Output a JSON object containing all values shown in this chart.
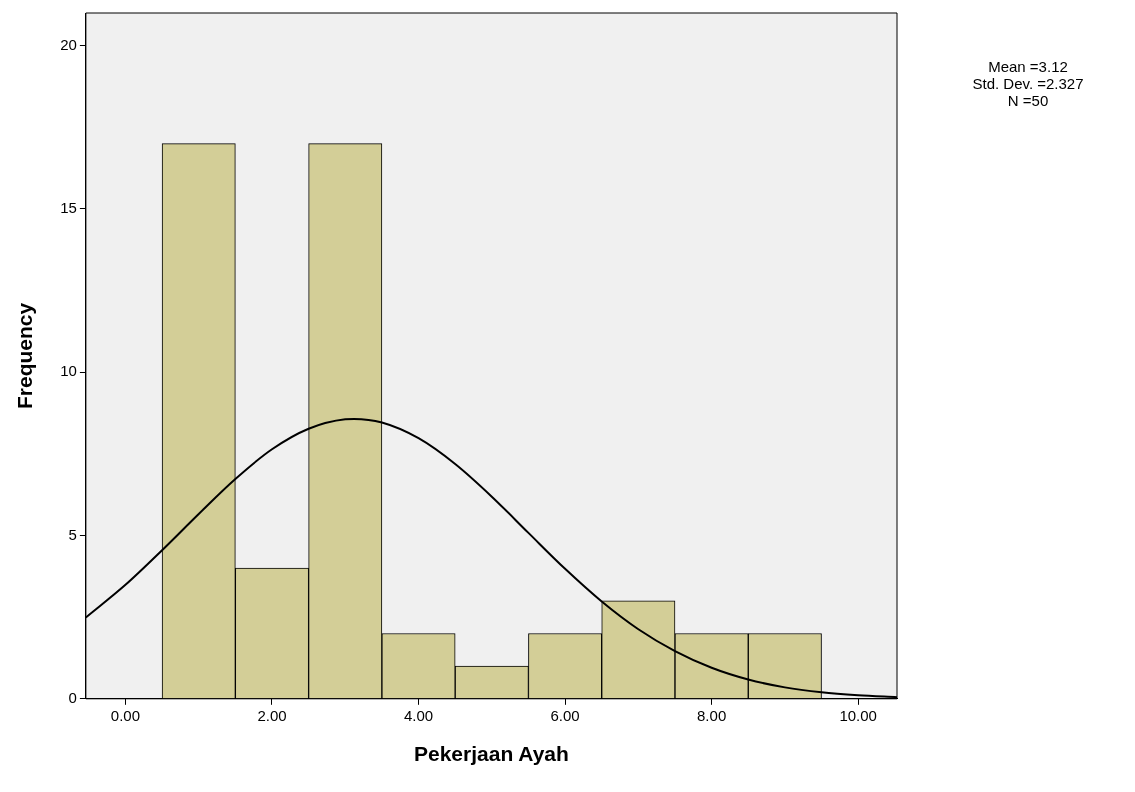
{
  "chart_data": {
    "type": "histogram",
    "xlabel": "Pekerjaan Ayah",
    "ylabel": "Frequency",
    "bins": [
      0.5,
      1.5,
      2.5,
      3.5,
      4.5,
      5.5,
      6.5,
      7.5,
      8.5,
      9.5
    ],
    "values": [
      17,
      4,
      17,
      2,
      1,
      2,
      3,
      2,
      2
    ],
    "color": "#d3ce97",
    "series": [
      {
        "type": "line",
        "color": "#000000",
        "marker": "none",
        "x": [
          -0.54,
          0,
          0.5,
          1,
          1.5,
          2,
          2.5,
          3,
          3.12,
          3.5,
          4,
          4.5,
          5,
          5.5,
          6,
          6.5,
          7,
          7.5,
          8,
          8.5,
          9,
          9.5,
          10,
          10.53
        ],
        "values": [
          2.49,
          3.49,
          4.55,
          5.66,
          6.73,
          7.64,
          8.27,
          8.56,
          8.57,
          8.46,
          7.98,
          7.19,
          6.19,
          5.08,
          3.98,
          2.98,
          2.13,
          1.46,
          0.95,
          0.59,
          0.35,
          0.2,
          0.11,
          0.05
        ]
      }
    ],
    "xlim": [
      -0.54,
      10.53
    ],
    "xticks": [
      {
        "value": 0,
        "label": "0.00"
      },
      {
        "value": 2,
        "label": "2.00"
      },
      {
        "value": 4,
        "label": "4.00"
      },
      {
        "value": 6,
        "label": "6.00"
      },
      {
        "value": 8,
        "label": "8.00"
      },
      {
        "value": 10,
        "label": "10.00"
      }
    ],
    "ylim": [
      0,
      21
    ],
    "yticks": [
      0,
      5,
      10,
      15,
      20
    ],
    "grid": false,
    "legend": false,
    "annotations": [
      "Mean =3.12",
      "Std. Dev. =2.327",
      "N =50"
    ]
  }
}
